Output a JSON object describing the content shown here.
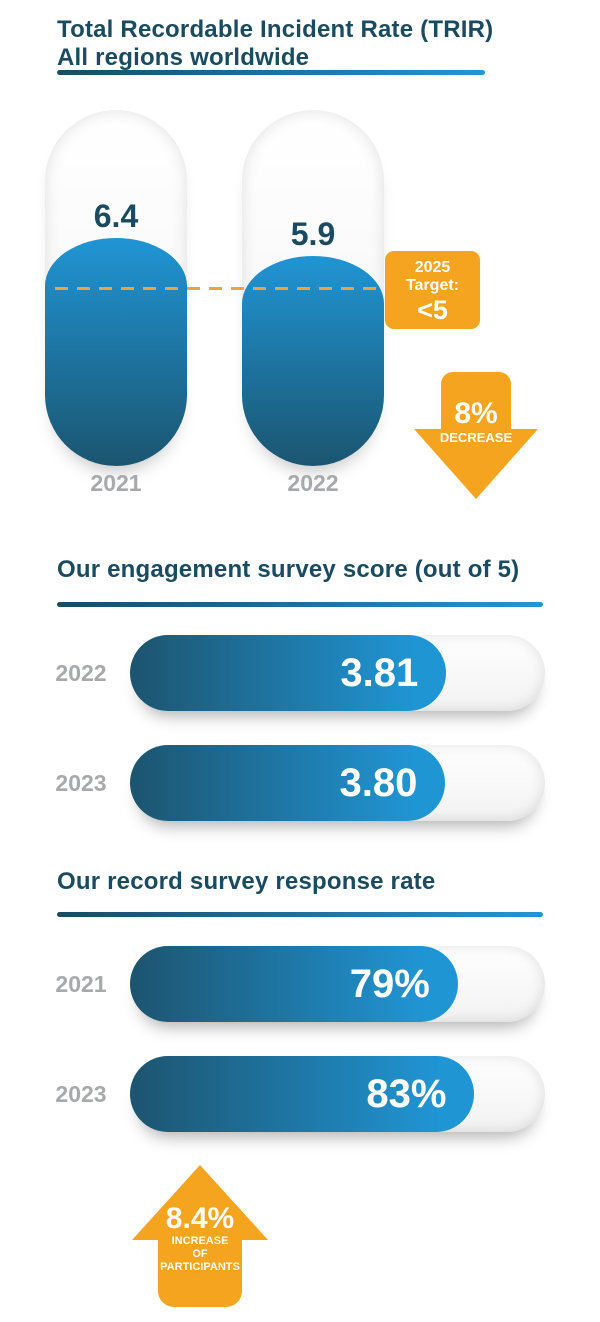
{
  "colors": {
    "dark_teal": "#1B4B60",
    "bright_blue": "#2196D6",
    "deep_blue": "#1B5570",
    "orange": "#F5A41F",
    "gray_label": "#A7A9AC"
  },
  "section_trir": {
    "title_line1": "Total Recordable Incident Rate (TRIR)",
    "title_line2": "All regions worldwide",
    "scale_max": 10,
    "target_value": 5,
    "bars": [
      {
        "year": "2021",
        "value": 6.4,
        "display": "6.4"
      },
      {
        "year": "2022",
        "value": 5.9,
        "display": "5.9"
      }
    ],
    "target_badge": {
      "line1": "2025",
      "line2": "Target:",
      "line3": "<5"
    },
    "decrease_arrow": {
      "value": "8%",
      "label": "DECREASE"
    }
  },
  "section_engagement": {
    "title": "Our engagement survey score (out of 5)",
    "max": 5,
    "bars": [
      {
        "year": "2022",
        "value": 3.81,
        "display": "3.81"
      },
      {
        "year": "2023",
        "value": 3.8,
        "display": "3.80"
      }
    ]
  },
  "section_response": {
    "title": "Our record survey response rate",
    "max": 100,
    "bars": [
      {
        "year": "2021",
        "value": 79,
        "display": "79%"
      },
      {
        "year": "2023",
        "value": 83,
        "display": "83%"
      }
    ],
    "increase_arrow": {
      "value": "8.4%",
      "line1": "INCREASE",
      "line2": "OF",
      "line3": "PARTICIPANTS"
    }
  },
  "chart_data": [
    {
      "type": "bar",
      "title": "Total Recordable Incident Rate (TRIR) — All regions worldwide",
      "categories": [
        "2021",
        "2022"
      ],
      "values": [
        6.4,
        5.9
      ],
      "ylim": [
        0,
        10
      ],
      "target_line": 5,
      "annotations": [
        "2025 Target: <5",
        "8% DECREASE"
      ],
      "orientation": "vertical",
      "grid": false,
      "legend": "none"
    },
    {
      "type": "bar",
      "title": "Our engagement survey score (out of 5)",
      "categories": [
        "2022",
        "2023"
      ],
      "values": [
        3.81,
        3.8
      ],
      "xlim": [
        0,
        5
      ],
      "orientation": "horizontal",
      "grid": false,
      "legend": "none"
    },
    {
      "type": "bar",
      "title": "Our record survey response rate",
      "categories": [
        "2021",
        "2023"
      ],
      "values": [
        79,
        83
      ],
      "xlim": [
        0,
        100
      ],
      "value_format": "percent",
      "annotations": [
        "8.4% INCREASE OF PARTICIPANTS"
      ],
      "orientation": "horizontal",
      "grid": false,
      "legend": "none"
    }
  ]
}
